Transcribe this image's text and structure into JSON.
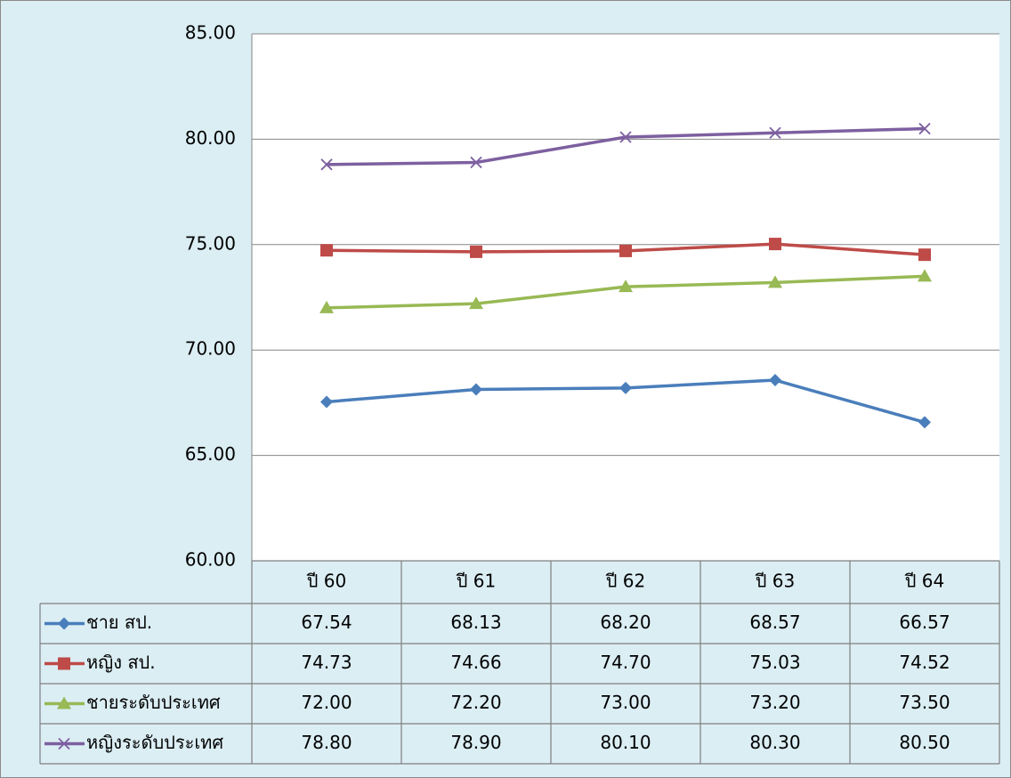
{
  "chart_data": {
    "type": "line",
    "categories": [
      "ปี 60",
      "ปี 61",
      "ปี 62",
      "ปี 63",
      "ปี 64"
    ],
    "series": [
      {
        "name": "ชาย สป.",
        "color": "#4a7ebb",
        "marker": "diamond",
        "values": [
          67.54,
          68.13,
          68.2,
          68.57,
          66.57
        ],
        "value_labels": [
          "67.54",
          "68.13",
          "68.20",
          "68.57",
          "66.57"
        ]
      },
      {
        "name": "หญิง สป.",
        "color": "#be4b48",
        "marker": "square",
        "values": [
          74.73,
          74.66,
          74.7,
          75.03,
          74.52
        ],
        "value_labels": [
          "74.73",
          "74.66",
          "74.70",
          "75.03",
          "74.52"
        ]
      },
      {
        "name": "ชายระดับประเทศ",
        "color": "#98b954",
        "marker": "triangle",
        "values": [
          72.0,
          72.2,
          73.0,
          73.2,
          73.5
        ],
        "value_labels": [
          "72.00",
          "72.20",
          "73.00",
          "73.20",
          "73.50"
        ]
      },
      {
        "name": "หญิงระดับประเทศ",
        "color": "#7d60a0",
        "marker": "x",
        "values": [
          78.8,
          78.9,
          80.1,
          80.3,
          80.5
        ],
        "value_labels": [
          "78.80",
          "78.90",
          "80.10",
          "80.30",
          "80.50"
        ]
      }
    ],
    "ylim": [
      60,
      85
    ],
    "yticks": [
      {
        "value": 60,
        "label": "60.00"
      },
      {
        "value": 65,
        "label": "65.00"
      },
      {
        "value": 70,
        "label": "70.00"
      },
      {
        "value": 75,
        "label": "75.00"
      },
      {
        "value": 80,
        "label": "80.00"
      },
      {
        "value": 85,
        "label": "85.00"
      }
    ],
    "grid": true
  }
}
